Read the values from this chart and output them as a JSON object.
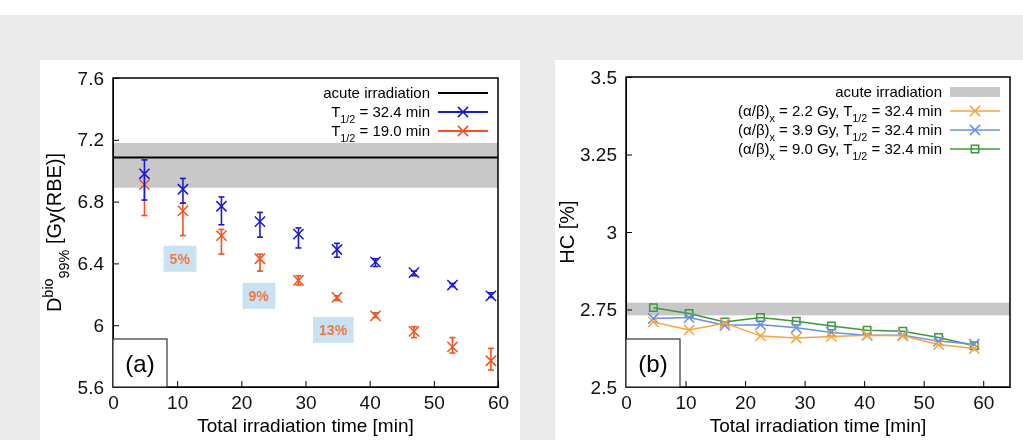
{
  "chart_data": [
    {
      "type": "scatter",
      "xlabel": "Total irradiation time [min]",
      "ylabel": "D$^{bio}$$_{99%}$ [Gy(RBE)]",
      "xlim": [
        0,
        60
      ],
      "ylim": [
        5.6,
        7.6
      ],
      "xticks": [
        0,
        10,
        20,
        30,
        40,
        50,
        60
      ],
      "yticks": [
        5.6,
        6,
        6.4,
        6.8,
        7.2,
        7.6
      ],
      "legend": "top right",
      "x": [
        4.9,
        10.9,
        16.9,
        22.9,
        28.9,
        34.9,
        40.9,
        46.9,
        52.9,
        58.9
      ],
      "series": [
        {
          "name": "T$_{1/2}$ = 32.4 min",
          "color": "#1a1ad6",
          "marker": "cross",
          "values": [
            6.98,
            6.88,
            6.77,
            6.67,
            6.59,
            6.49,
            6.41,
            6.34,
            6.26,
            6.19
          ],
          "errors": [
            [
              6.81,
              7.07
            ],
            [
              6.79,
              6.95
            ],
            [
              6.65,
              6.83
            ],
            [
              6.57,
              6.73
            ],
            [
              6.5,
              6.63
            ],
            [
              6.44,
              6.53
            ],
            [
              6.38,
              6.43
            ],
            [
              6.32,
              6.35
            ],
            [
              6.25,
              6.27
            ],
            [
              6.18,
              6.21
            ]
          ]
        },
        {
          "name": "T$_{1/2}$ = 19.0 min",
          "color": "#f5501e",
          "marker": "cross",
          "values": [
            6.91,
            6.74,
            6.58,
            6.43,
            6.29,
            6.18,
            6.06,
            5.96,
            5.86,
            5.77
          ],
          "errors": [
            [
              6.71,
              6.99
            ],
            [
              6.58,
              6.79
            ],
            [
              6.46,
              6.62
            ],
            [
              6.35,
              6.46
            ],
            [
              6.26,
              6.32
            ],
            [
              6.16,
              6.19
            ],
            [
              6.05,
              6.08
            ],
            [
              5.92,
              5.99
            ],
            [
              5.82,
              5.92
            ],
            [
              5.71,
              5.85
            ]
          ]
        }
      ],
      "ref_lines": [
        {
          "axis": "y",
          "value": 7.085,
          "label": "acute irradiation",
          "color": "#000000"
        }
      ],
      "bands": [
        {
          "axis": "y",
          "from": 6.89,
          "to": 7.18,
          "color": "#c8c8c8"
        }
      ],
      "annotations": [
        "(a)",
        {
          "text": "5%",
          "x": 10.4,
          "y": 6.43
        },
        {
          "text": "9%",
          "x": 22.7,
          "y": 6.19
        },
        {
          "text": "13%",
          "x": 34.3,
          "y": 5.97
        }
      ]
    },
    {
      "type": "line",
      "xlabel": "Total irradiation time [min]",
      "ylabel": "HC [%]",
      "xlim": [
        0,
        64.5
      ],
      "ylim": [
        2.5,
        3.5
      ],
      "xticks": [
        0,
        10,
        20,
        30,
        40,
        50,
        60
      ],
      "yticks": [
        2.5,
        2.75,
        3,
        3.25,
        3.5
      ],
      "legend": "top right",
      "x": [
        4.6,
        10.6,
        16.6,
        22.6,
        28.6,
        34.5,
        40.5,
        46.5,
        52.5,
        58.5
      ],
      "series": [
        {
          "name": "(α/β)$_{x}$ = 2.2 Gy, T$_{1/2}$ = 32.4 min",
          "color": "#f7a440",
          "marker": "cross",
          "values": [
            2.71,
            2.684,
            2.706,
            2.665,
            2.658,
            2.663,
            2.667,
            2.665,
            2.637,
            2.624
          ]
        },
        {
          "name": "(α/β)$_{x}$ = 3.9 Gy, T$_{1/2}$ = 32.4 min",
          "color": "#6a8ef0",
          "marker": "cross",
          "values": [
            2.721,
            2.724,
            2.699,
            2.701,
            2.691,
            2.676,
            2.667,
            2.667,
            2.648,
            2.638
          ]
        },
        {
          "name": "(α/β)$_{x}$ = 9.0 Gy, T$_{1/2}$ = 32.4 min",
          "color": "#3a9a3a",
          "marker": "square",
          "values": [
            2.756,
            2.737,
            2.71,
            2.724,
            2.712,
            2.697,
            2.683,
            2.68,
            2.66,
            2.633
          ]
        }
      ],
      "bands": [
        {
          "axis": "y",
          "from": 2.731,
          "to": 2.772,
          "label": "acute irradiation",
          "color": "#c8c8c8"
        }
      ],
      "annotations": [
        "(b)"
      ]
    }
  ]
}
